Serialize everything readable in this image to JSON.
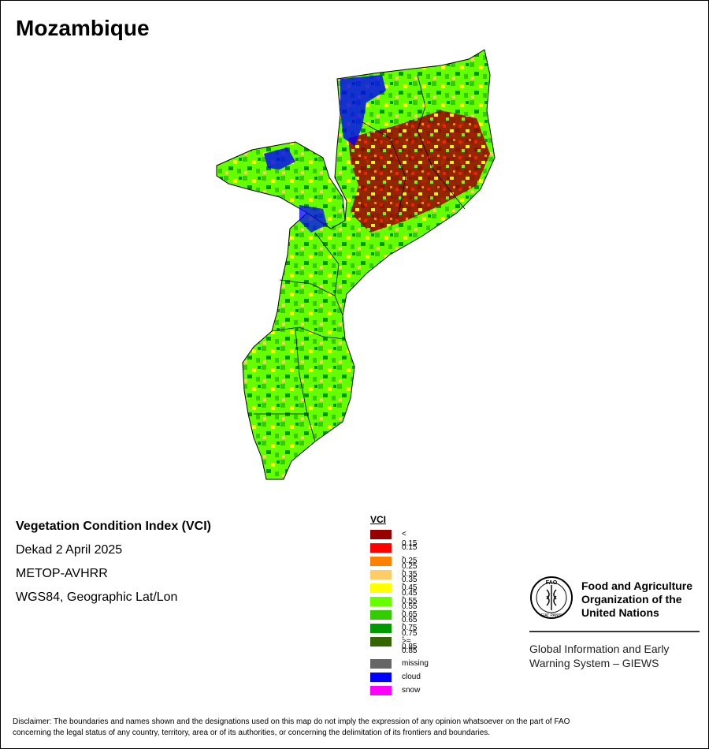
{
  "map": {
    "title": "Mozambique",
    "regions": [
      "country-outline-north",
      "country-outline-central",
      "country-outline-south"
    ]
  },
  "info": {
    "index_name": "Vegetation Condition Index (VCI)",
    "period": "Dekad 2 April 2025",
    "sensor": "METOP-AVHRR",
    "projection": "WGS84, Geographic Lat/Lon"
  },
  "legend": {
    "title": "VCI",
    "classes": [
      {
        "label": "< 0.15",
        "color": "#990000"
      },
      {
        "label": "0.15 - 0.25",
        "color": "#ff0000"
      },
      {
        "label": "0.25 - 0.35",
        "color": "#ff8000"
      },
      {
        "label": "0.35 - 0.45",
        "color": "#ffcc66"
      },
      {
        "label": "0.45 - 0.55",
        "color": "#ffff00"
      },
      {
        "label": "0.55 - 0.65",
        "color": "#66ff00"
      },
      {
        "label": "0.65 - 0.75",
        "color": "#33cc00"
      },
      {
        "label": "0.75 - 0.85",
        "color": "#009900"
      },
      {
        "label": ">= 0.85",
        "color": "#336600"
      }
    ],
    "special": [
      {
        "label": "missing",
        "color": "#666666"
      },
      {
        "label": "cloud",
        "color": "#0000ff"
      },
      {
        "label": "snow",
        "color": "#ff00ff"
      }
    ]
  },
  "organization": {
    "name_line1": "Food and Agriculture",
    "name_line2": "Organization of the",
    "name_line3": "United Nations",
    "program_line1": "Global Information and Early",
    "program_line2": "Warning System – GIEWS",
    "logo_text": "FAO",
    "logo_motto": "FIAT PANIS"
  },
  "disclaimer": {
    "line1": "Disclaimer: The boundaries and names shown and the designations used on this map do not imply the expression of any opinion whatsoever on the part of FAO",
    "line2": "concerning the legal status of any country, territory, area or of its authorities, or concerning the delimitation of its frontiers and boundaries."
  }
}
